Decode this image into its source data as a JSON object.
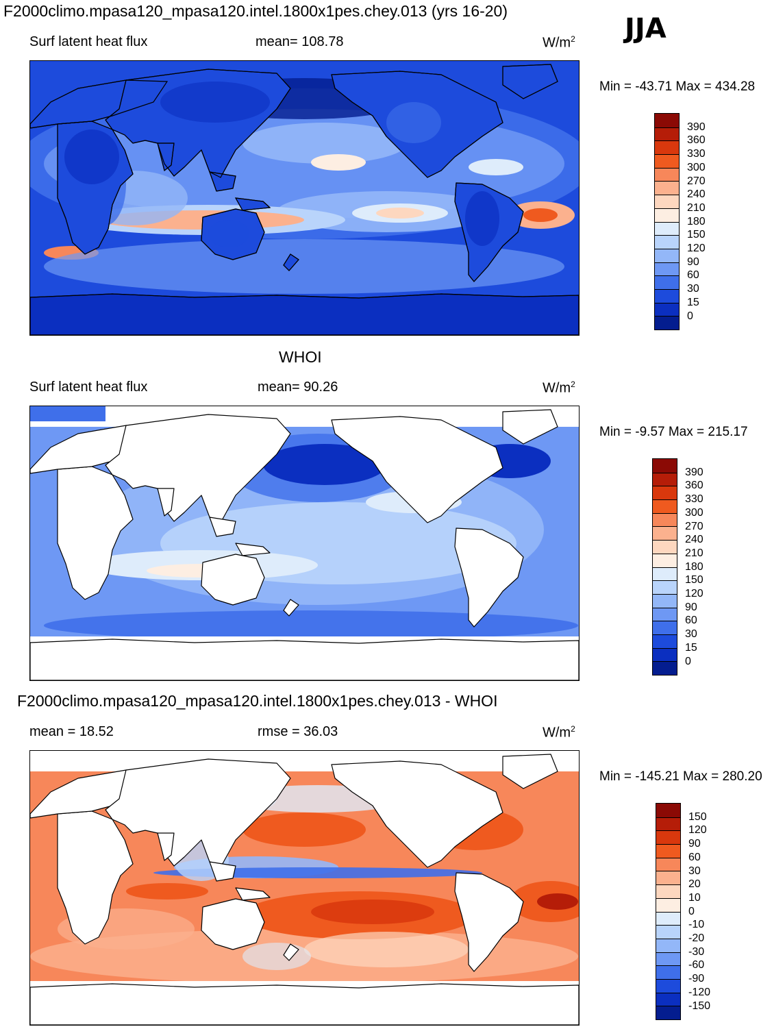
{
  "header": {
    "title": "F2000climo.mpasa120_mpasa120.intel.1800x1pes.chey.013 (yrs 16-20)",
    "season": "JJA"
  },
  "panels": [
    {
      "title": "",
      "left": "Surf latent heat flux",
      "center": "mean= 108.78",
      "unit_base": "W/m",
      "unit_sup": "2",
      "minmax": "Min = -43.71 Max = 434.28",
      "field": "model",
      "colorbar": {
        "labels": [
          "390",
          "360",
          "330",
          "300",
          "270",
          "240",
          "210",
          "180",
          "150",
          "120",
          "90",
          "60",
          "30",
          "15",
          "0"
        ],
        "colors": [
          "#8b0a05",
          "#b51d08",
          "#d9380d",
          "#ef5a1f",
          "#f7875a",
          "#fbb18e",
          "#fdd7bf",
          "#fdeee2",
          "#deecfb",
          "#b9d4fb",
          "#93b7f8",
          "#6e98f4",
          "#3f6fea",
          "#1d4bdc",
          "#0b2fc0",
          "#041d8f"
        ]
      }
    },
    {
      "title": "WHOI",
      "left": "Surf latent heat flux",
      "center": "mean=  90.26",
      "unit_base": "W/m",
      "unit_sup": "2",
      "minmax": "Min =  -9.57 Max = 215.17",
      "field": "obs",
      "colorbar": {
        "labels": [
          "390",
          "360",
          "330",
          "300",
          "270",
          "240",
          "210",
          "180",
          "150",
          "120",
          "90",
          "60",
          "30",
          "15",
          "0"
        ],
        "colors": [
          "#8b0a05",
          "#b51d08",
          "#d9380d",
          "#ef5a1f",
          "#f7875a",
          "#fbb18e",
          "#fdd7bf",
          "#fdeee2",
          "#deecfb",
          "#b9d4fb",
          "#93b7f8",
          "#6e98f4",
          "#3f6fea",
          "#1d4bdc",
          "#0b2fc0",
          "#041d8f"
        ]
      }
    },
    {
      "title": "F2000climo.mpasa120_mpasa120.intel.1800x1pes.chey.013 - WHOI",
      "left": "mean =  18.52",
      "center": "rmse =  36.03",
      "unit_base": "W/m",
      "unit_sup": "2",
      "minmax": "Min = -145.21 Max = 280.20",
      "field": "diff",
      "colorbar": {
        "labels": [
          "150",
          "120",
          "90",
          "60",
          "30",
          "20",
          "10",
          "0",
          "-10",
          "-20",
          "-30",
          "-60",
          "-90",
          "-120",
          "-150"
        ],
        "colors": [
          "#8b0a05",
          "#b51d08",
          "#d9380d",
          "#ef5a1f",
          "#f7875a",
          "#fbb18e",
          "#fdd7bf",
          "#fdeee2",
          "#deecfb",
          "#b9d4fb",
          "#93b7f8",
          "#6e98f4",
          "#3f6fea",
          "#1d4bdc",
          "#0b2fc0",
          "#041d8f"
        ]
      }
    }
  ]
}
